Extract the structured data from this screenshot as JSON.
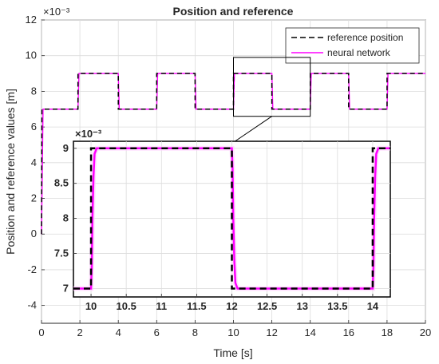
{
  "chart_data": [
    {
      "type": "line",
      "title": "Position and reference",
      "xlabel": "Time [s]",
      "ylabel": "Position and reference values [m]",
      "xlim": [
        0,
        20
      ],
      "ylim": [
        -5,
        12
      ],
      "x_ticks": [
        "0",
        "2",
        "4",
        "6",
        "8",
        "10",
        "12",
        "14",
        "16",
        "18",
        "20"
      ],
      "y_ticks": [
        "-4",
        "-2",
        "0",
        "2",
        "4",
        "6",
        "8",
        "10",
        "12"
      ],
      "exponent_label": "×10⁻³",
      "grid": true,
      "legend_position": "top-right",
      "series": [
        {
          "name": "reference position",
          "color": "#000000",
          "style": "dashed",
          "points": [
            [
              0,
              0
            ],
            [
              0.02,
              7
            ],
            [
              1.9,
              7
            ],
            [
              1.9,
              9
            ],
            [
              4,
              9
            ],
            [
              4,
              7
            ],
            [
              6,
              7
            ],
            [
              6,
              9
            ],
            [
              8,
              9
            ],
            [
              8,
              7
            ],
            [
              10,
              7
            ],
            [
              10,
              9
            ],
            [
              12,
              9
            ],
            [
              12,
              7
            ],
            [
              14,
              7
            ],
            [
              14,
              9
            ],
            [
              16,
              9
            ],
            [
              16,
              7
            ],
            [
              18,
              7
            ],
            [
              18,
              9
            ],
            [
              20,
              9
            ]
          ]
        },
        {
          "name": "neural network",
          "color": "#ff00ff",
          "style": "solid",
          "points": [
            [
              0,
              0
            ],
            [
              0.08,
              7
            ],
            [
              1.9,
              7
            ],
            [
              1.95,
              9
            ],
            [
              4,
              9
            ],
            [
              4.05,
              7
            ],
            [
              6,
              7
            ],
            [
              6.05,
              9
            ],
            [
              8,
              9
            ],
            [
              8.05,
              7
            ],
            [
              10,
              7
            ],
            [
              10.05,
              9
            ],
            [
              12,
              9
            ],
            [
              12.05,
              7
            ],
            [
              14,
              7
            ],
            [
              14.05,
              9
            ],
            [
              16,
              9
            ],
            [
              16.05,
              7
            ],
            [
              18,
              7
            ],
            [
              18.05,
              9
            ],
            [
              20,
              9
            ]
          ]
        }
      ]
    },
    {
      "type": "line",
      "title": "",
      "xlabel": "",
      "ylabel": "",
      "xlim": [
        9.75,
        14.25
      ],
      "ylim": [
        6.88,
        9.1
      ],
      "x_ticks": [
        "10",
        "10.5",
        "11",
        "11.5",
        "12",
        "12.5",
        "13",
        "13.5",
        "14"
      ],
      "y_ticks": [
        "7",
        "7.5",
        "8",
        "8.5",
        "9"
      ],
      "exponent_label": "×10⁻³",
      "grid": true,
      "zoom_region": {
        "x": [
          10,
          14
        ],
        "y": [
          6.6,
          9.9
        ]
      },
      "series": [
        {
          "name": "reference position",
          "color": "#000000",
          "style": "dashed",
          "points": [
            [
              9.75,
              7
            ],
            [
              10,
              7
            ],
            [
              10,
              9
            ],
            [
              12,
              9
            ],
            [
              12,
              7
            ],
            [
              14,
              7
            ],
            [
              14,
              9
            ],
            [
              14.25,
              9
            ]
          ]
        },
        {
          "name": "neural network",
          "color": "#ff00ff",
          "style": "solid",
          "points": [
            [
              9.75,
              7
            ],
            [
              10,
              7
            ],
            [
              10.01,
              7.3
            ],
            [
              10.02,
              8.0
            ],
            [
              10.035,
              8.6
            ],
            [
              10.05,
              8.92
            ],
            [
              10.08,
              9
            ],
            [
              12,
              9
            ],
            [
              12.01,
              8.7
            ],
            [
              12.02,
              8.0
            ],
            [
              12.035,
              7.4
            ],
            [
              12.05,
              7.08
            ],
            [
              12.08,
              7
            ],
            [
              14,
              7
            ],
            [
              14.01,
              7.3
            ],
            [
              14.02,
              8.0
            ],
            [
              14.035,
              8.6
            ],
            [
              14.05,
              8.92
            ],
            [
              14.08,
              9
            ],
            [
              14.25,
              9
            ]
          ]
        }
      ]
    }
  ]
}
